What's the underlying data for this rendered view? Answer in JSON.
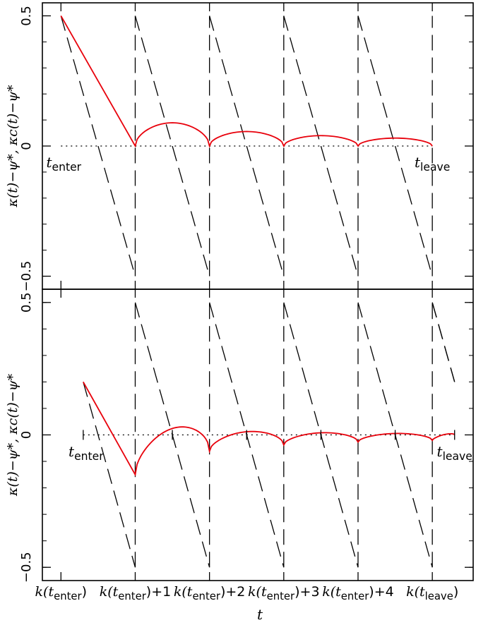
{
  "chart_data": [
    {
      "type": "line",
      "panel": "top",
      "xlabel": "t",
      "ylabel": "κ(t)−ψ*,  κc(t)−ψ*",
      "ylim": [
        -0.55,
        0.55
      ],
      "yticks": [
        -0.5,
        0,
        0.5
      ],
      "ytick_labels": [
        "−0.5",
        "0",
        "0.5"
      ],
      "xlim": [
        -0.25,
        5.55
      ],
      "reference_line": {
        "y": 0,
        "style": "dotted"
      },
      "period_boundaries": [
        1,
        2,
        3,
        4,
        5
      ],
      "annotations": [
        {
          "base": "t",
          "sub": "enter",
          "x": 0,
          "y": -0.065
        },
        {
          "base": "t",
          "sub": "leave",
          "x": 5,
          "y": -0.065
        }
      ],
      "series": [
        {
          "style": "dashed-black",
          "kind": "sawtooth",
          "x_start": 0,
          "x_end": 5,
          "y_start": 0.5,
          "period": 1,
          "slope": -1
        },
        {
          "style": "solid-red",
          "x": [
            0,
            1
          ],
          "y": [
            0.5,
            0
          ],
          "arcs": [
            {
              "x0": 1,
              "x1": 2,
              "y0": 0.0,
              "y1": 0.0,
              "peak": 0.085
            },
            {
              "x0": 2,
              "x1": 3,
              "y0": 0.0,
              "y1": 0.0,
              "peak": 0.053
            },
            {
              "x0": 3,
              "x1": 4,
              "y0": 0.0,
              "y1": 0.0,
              "peak": 0.038
            },
            {
              "x0": 4,
              "x1": 5,
              "y0": 0.0,
              "y1": 0.0,
              "peak": 0.029
            }
          ]
        }
      ]
    },
    {
      "type": "line",
      "panel": "bottom",
      "xlabel": "t",
      "ylabel": "κ(t)−ψ*,  κc(t)−ψ*",
      "ylim": [
        -0.55,
        0.55
      ],
      "yticks": [
        -0.5,
        0,
        0.5
      ],
      "ytick_labels": [
        "−0.5",
        "0",
        "0.5"
      ],
      "xlim": [
        -0.25,
        5.55
      ],
      "xticks": [
        0,
        1,
        2,
        3,
        4,
        5
      ],
      "reference_line": {
        "y": 0,
        "style": "dotted"
      },
      "period_boundaries": [
        1,
        2,
        3,
        4,
        5
      ],
      "annotations": [
        {
          "base": "t",
          "sub": "enter",
          "x": 0.3,
          "y": -0.065
        },
        {
          "base": "t",
          "sub": "leave",
          "x": 5.3,
          "y": -0.065
        }
      ],
      "small_ticks_x": [
        0.3,
        1.5,
        2.5,
        3.5,
        4.5,
        5.3
      ],
      "series": [
        {
          "style": "dashed-black",
          "kind": "sawtooth",
          "x_start": 0.3,
          "x_end": 5.3,
          "y_start": 0.2,
          "period": 1,
          "slope": -1
        },
        {
          "style": "solid-red",
          "x": [
            0.3,
            1
          ],
          "y": [
            0.2,
            -0.15
          ],
          "arcs": [
            {
              "x0": 1,
              "x1": 2,
              "y0": -0.15,
              "y1": -0.062,
              "peak": 0.018
            },
            {
              "x0": 2,
              "x1": 3,
              "y0": -0.062,
              "y1": -0.038,
              "peak": 0.009
            },
            {
              "x0": 3,
              "x1": 4,
              "y0": -0.038,
              "y1": -0.027,
              "peak": 0.006
            },
            {
              "x0": 4,
              "x1": 5,
              "y0": -0.027,
              "y1": -0.021,
              "peak": 0.004
            },
            {
              "x0": 5,
              "x1": 5.3,
              "y0": -0.021,
              "y1": 0.0,
              "peak": 0.0
            }
          ]
        }
      ]
    }
  ],
  "x_tick_labels": [
    {
      "base": "k(t",
      "sub": "enter",
      "suffix": ")"
    },
    {
      "base": "k(t",
      "sub": "enter",
      "suffix": ")+1"
    },
    {
      "base": "k(t",
      "sub": "enter",
      "suffix": ")+2"
    },
    {
      "base": "k(t",
      "sub": "enter",
      "suffix": ")+3"
    },
    {
      "base": "k(t",
      "sub": "enter",
      "suffix": ")+4"
    },
    {
      "base": "k(t",
      "sub": "leave",
      "suffix": ")"
    }
  ],
  "x_axis_title": "t",
  "colors": {
    "red_series": "#e8000b",
    "axes": "#000000"
  }
}
